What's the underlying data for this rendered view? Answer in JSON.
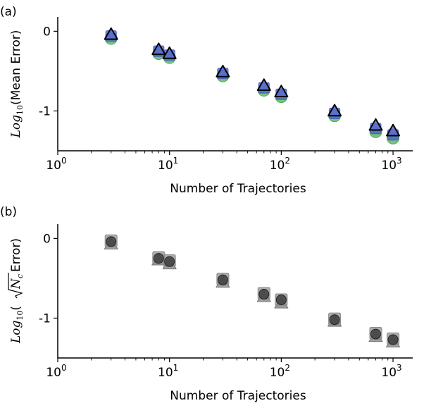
{
  "chart_data": [
    {
      "panel_label": "(a)",
      "type": "scatter",
      "xlabel": "Number of Trajectories",
      "ylabel": {
        "prefix": "Log",
        "sub": "10",
        "suffix": "(Mean Error)"
      },
      "xscale": "log",
      "xlim": [
        1,
        1500
      ],
      "ylim": [
        -1.5,
        0.18
      ],
      "x_ticks": [
        {
          "value": 1,
          "base": "10",
          "exp": "0"
        },
        {
          "value": 10,
          "base": "10",
          "exp": "1"
        },
        {
          "value": 100,
          "base": "10",
          "exp": "2"
        },
        {
          "value": 1000,
          "base": "10",
          "exp": "3"
        }
      ],
      "y_ticks": [
        {
          "value": 0,
          "label": "0"
        },
        {
          "value": -1,
          "label": "-1"
        }
      ],
      "series": [
        {
          "marker": "circle",
          "color": "#4caf50",
          "x": [
            3,
            8,
            10,
            30,
            70,
            100,
            300,
            700,
            1000
          ],
          "y": [
            -0.09,
            -0.28,
            -0.33,
            -0.56,
            -0.74,
            -0.82,
            -1.06,
            -1.26,
            -1.34
          ]
        },
        {
          "marker": "square",
          "color": "#4a5ec8",
          "x": [
            3,
            8,
            10,
            30,
            70,
            100,
            300,
            700,
            1000
          ],
          "y": [
            -0.06,
            -0.25,
            -0.3,
            -0.53,
            -0.71,
            -0.79,
            -1.03,
            -1.22,
            -1.3
          ]
        },
        {
          "marker": "triangle",
          "color": "#000000",
          "x": [
            3,
            8,
            10,
            30,
            70,
            100,
            300,
            700,
            1000
          ],
          "y": [
            -0.04,
            -0.23,
            -0.28,
            -0.51,
            -0.68,
            -0.76,
            -1.0,
            -1.18,
            -1.25
          ]
        }
      ]
    },
    {
      "panel_label": "(b)",
      "type": "scatter",
      "xlabel": "Number of Trajectories",
      "ylabel": {
        "prefix": "Log",
        "sub": "10",
        "open": "(",
        "radicand": "N",
        "radicand_sub": "c",
        "suffix": " Error)"
      },
      "xscale": "log",
      "xlim": [
        1,
        1500
      ],
      "ylim": [
        -1.5,
        0.18
      ],
      "x_ticks": [
        {
          "value": 1,
          "base": "10",
          "exp": "0"
        },
        {
          "value": 10,
          "base": "10",
          "exp": "1"
        },
        {
          "value": 100,
          "base": "10",
          "exp": "2"
        },
        {
          "value": 1000,
          "base": "10",
          "exp": "3"
        }
      ],
      "y_ticks": [
        {
          "value": 0,
          "label": "0"
        },
        {
          "value": -1,
          "label": "-1"
        }
      ],
      "series": [
        {
          "marker": "triangle",
          "color": "#777777",
          "x": [
            3,
            8,
            10,
            30,
            70,
            100,
            300,
            700,
            1000
          ],
          "y": [
            -0.07,
            -0.27,
            -0.32,
            -0.55,
            -0.73,
            -0.81,
            -1.04,
            -1.23,
            -1.3
          ]
        },
        {
          "marker": "square",
          "color": "#8a8a8a",
          "x": [
            3,
            8,
            10,
            30,
            70,
            100,
            300,
            700,
            1000
          ],
          "y": [
            -0.03,
            -0.24,
            -0.28,
            -0.51,
            -0.69,
            -0.77,
            -1.01,
            -1.19,
            -1.26
          ]
        },
        {
          "marker": "circle",
          "color": "#3a3a3a",
          "x": [
            3,
            8,
            10,
            30,
            70,
            100,
            300,
            700,
            1000
          ],
          "y": [
            -0.04,
            -0.25,
            -0.29,
            -0.52,
            -0.7,
            -0.77,
            -1.02,
            -1.2,
            -1.27
          ]
        }
      ]
    }
  ]
}
